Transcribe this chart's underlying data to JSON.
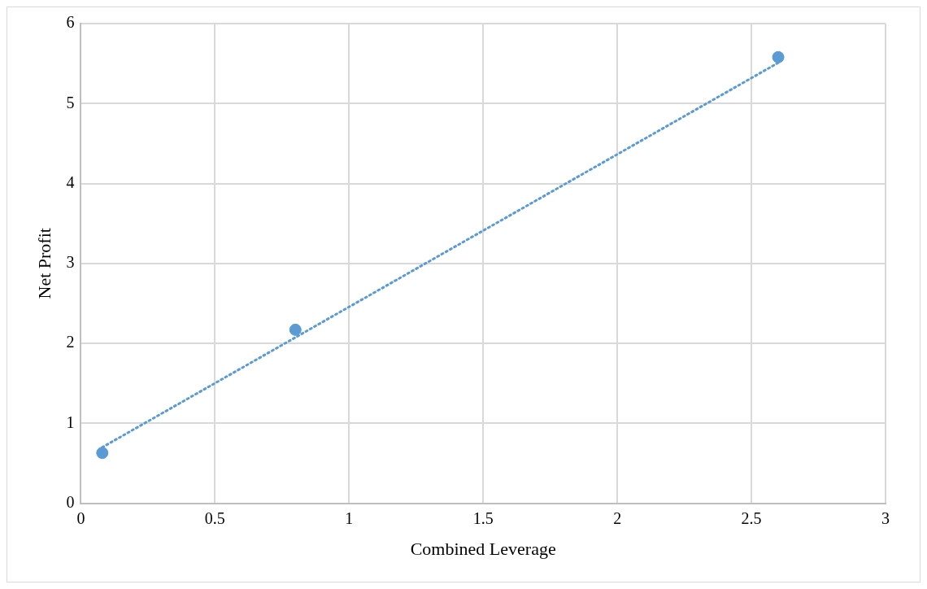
{
  "chart_data": {
    "type": "scatter",
    "xlabel": "Combined Leverage",
    "ylabel": "Net Profit",
    "xlim": [
      0,
      3
    ],
    "xticks": [
      0,
      0.5,
      1,
      1.5,
      2,
      2.5,
      3
    ],
    "ylim": [
      0,
      6
    ],
    "yticks": [
      0,
      1,
      2,
      3,
      4,
      5,
      6
    ],
    "grid": true,
    "legend": false,
    "marker": "circle",
    "series": [
      {
        "type": "scatter",
        "color": "#5b9bd5",
        "x": [
          0.08,
          0.8,
          2.6
        ],
        "values": [
          0.63,
          2.17,
          5.58
        ]
      },
      {
        "type": "line",
        "color": "#5b9bd5",
        "line_style": "dotted",
        "marker": "none",
        "x": [
          0.08,
          2.6
        ],
        "values": [
          0.7,
          5.51
        ]
      }
    ]
  }
}
